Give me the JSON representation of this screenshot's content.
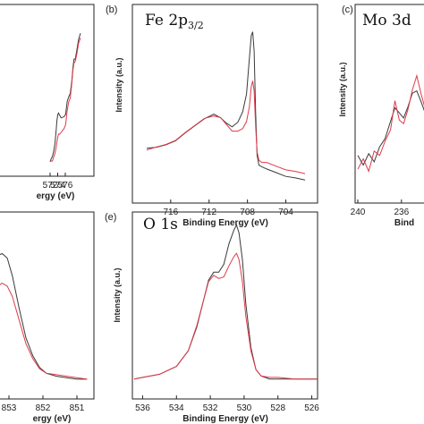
{
  "chart_data": [
    {
      "id": "cr",
      "panel_label": "",
      "title": "",
      "type": "line",
      "xlabel": "ergy (eV)",
      "ylabel": "",
      "xlim": [
        572,
        580
      ],
      "xticks": [
        "576",
        "574",
        "572"
      ],
      "series": [
        {
          "color": "#3a3a3a",
          "x": [
            580,
            579.5,
            579,
            578.6,
            578.3,
            578,
            577.7,
            577.3,
            576.9,
            576.5,
            576.1,
            575.7,
            575.3,
            574.9,
            574.5,
            574.2,
            574,
            573.8,
            573.6,
            573.3,
            573,
            572.6,
            572.3,
            572
          ],
          "y": [
            0.97,
            0.93,
            0.85,
            0.79,
            0.78,
            0.72,
            0.62,
            0.52,
            0.5,
            0.47,
            0.38,
            0.35,
            0.35,
            0.35,
            0.36,
            0.38,
            0.37,
            0.33,
            0.25,
            0.16,
            0.11,
            0.05,
            0.04,
            0.02
          ]
        },
        {
          "color": "#e03a4a",
          "x": [
            580,
            579.5,
            579,
            578.6,
            578.3,
            578,
            577.7,
            577.3,
            576.9,
            576.5,
            576.1,
            575.7,
            575.3,
            574.9,
            574.5,
            574.2,
            574,
            573.8,
            573.6,
            573.3,
            573,
            572.6,
            572.3,
            572
          ],
          "y": [
            0.95,
            0.9,
            0.82,
            0.77,
            0.75,
            0.7,
            0.6,
            0.5,
            0.46,
            0.4,
            0.3,
            0.26,
            0.25,
            0.24,
            0.23,
            0.22,
            0.2,
            0.17,
            0.12,
            0.08,
            0.06,
            0.03,
            0.02,
            0.02
          ]
        }
      ]
    },
    {
      "id": "fe",
      "panel_label": "(b)",
      "title": "Fe 2p3/2",
      "title_main": "Fe 2p",
      "title_sub": "3/2",
      "type": "line",
      "xlabel": "Binding Energy (eV)",
      "ylabel": "Intensity (a.u.)",
      "xlim": [
        702,
        718.5
      ],
      "xticks": [
        "716",
        "712",
        "708",
        "704"
      ],
      "series": [
        {
          "color": "#3a3a3a",
          "x": [
            718.5,
            717.5,
            716.5,
            715.5,
            714.5,
            713.5,
            712.5,
            711.5,
            710.8,
            710.2,
            709.6,
            709,
            708.5,
            708.1,
            707.8,
            707.6,
            707.45,
            707.3,
            707.15,
            707,
            706.8,
            706.5,
            706,
            705,
            704,
            703,
            702
          ],
          "y": [
            0.22,
            0.23,
            0.25,
            0.28,
            0.32,
            0.37,
            0.42,
            0.44,
            0.42,
            0.39,
            0.37,
            0.39,
            0.46,
            0.58,
            0.8,
            0.95,
            0.98,
            0.86,
            0.45,
            0.18,
            0.12,
            0.1,
            0.09,
            0.07,
            0.05,
            0.03,
            0.02
          ]
        },
        {
          "color": "#e03a4a",
          "x": [
            718.5,
            717.5,
            716.5,
            715.5,
            714.5,
            713.5,
            712.5,
            711.5,
            710.8,
            710.2,
            709.6,
            709,
            708.5,
            708.1,
            707.8,
            707.6,
            707.45,
            707.3,
            707.15,
            707,
            706.8,
            706.5,
            706,
            705,
            704,
            703,
            702
          ],
          "y": [
            0.22,
            0.23,
            0.25,
            0.28,
            0.32,
            0.37,
            0.42,
            0.44,
            0.42,
            0.38,
            0.34,
            0.33,
            0.35,
            0.4,
            0.5,
            0.62,
            0.66,
            0.6,
            0.36,
            0.2,
            0.15,
            0.14,
            0.13,
            0.11,
            0.09,
            0.07,
            0.06
          ]
        }
      ]
    },
    {
      "id": "mo",
      "panel_label": "(c)",
      "title": "Mo 3d",
      "type": "line",
      "xlabel": "Bind",
      "ylabel": "Intensity (a.u.)",
      "xlim": [
        230,
        240
      ],
      "xticks": [
        "240",
        "236"
      ],
      "series": [
        {
          "color": "#3a3a3a",
          "x": [
            240,
            239.5,
            239,
            238.5,
            238,
            237.5,
            237,
            236.6,
            236.2,
            235.8,
            235.4,
            235,
            234.6,
            234.2,
            233.8
          ],
          "y": [
            0.18,
            0.12,
            0.2,
            0.15,
            0.24,
            0.3,
            0.42,
            0.5,
            0.47,
            0.44,
            0.52,
            0.6,
            0.62,
            0.55,
            0.46
          ]
        },
        {
          "color": "#e03a4a",
          "x": [
            240,
            239.5,
            239,
            238.5,
            238,
            237.5,
            237,
            236.6,
            236.2,
            235.8,
            235.4,
            235,
            234.6,
            234.2,
            233.8
          ],
          "y": [
            0.1,
            0.16,
            0.08,
            0.22,
            0.18,
            0.28,
            0.36,
            0.56,
            0.42,
            0.4,
            0.5,
            0.62,
            0.72,
            0.6,
            0.5
          ]
        }
      ]
    },
    {
      "id": "ni",
      "panel_label": "",
      "title": "",
      "type": "line",
      "xlabel": "ergy (eV)",
      "ylabel": "",
      "xlim": [
        850.5,
        854.5
      ],
      "xticks": [
        "853",
        "852",
        "851"
      ],
      "series": [
        {
          "color": "#3a3a3a",
          "x": [
            854.5,
            854.2,
            853.9,
            853.6,
            853.4,
            853.2,
            853.05,
            852.9,
            852.7,
            852.5,
            852.3,
            852.1,
            851.9,
            851.6,
            851.3,
            851,
            850.7
          ],
          "y": [
            0.5,
            0.62,
            0.72,
            0.8,
            0.85,
            0.87,
            0.84,
            0.72,
            0.5,
            0.3,
            0.18,
            0.1,
            0.06,
            0.04,
            0.03,
            0.02,
            0.02
          ]
        },
        {
          "color": "#e03a4a",
          "x": [
            854.5,
            854.2,
            853.9,
            853.6,
            853.4,
            853.2,
            853.05,
            852.9,
            852.7,
            852.5,
            852.3,
            852.1,
            851.9,
            851.6,
            851.3,
            851,
            850.7
          ],
          "y": [
            0.35,
            0.44,
            0.52,
            0.6,
            0.64,
            0.67,
            0.65,
            0.58,
            0.42,
            0.26,
            0.16,
            0.09,
            0.06,
            0.05,
            0.04,
            0.03,
            0.02
          ]
        }
      ]
    },
    {
      "id": "o",
      "panel_label": "(e)",
      "title": "O 1s",
      "type": "line",
      "xlabel": "Binding Energy (eV)",
      "ylabel": "Intensity (a.u.)",
      "xlim": [
        525.5,
        536.5
      ],
      "xticks": [
        "536",
        "534",
        "532",
        "530",
        "528",
        "526"
      ],
      "series": [
        {
          "color": "#3a3a3a",
          "x": [
            536.5,
            536,
            535,
            534,
            533.3,
            532.8,
            532.4,
            532.1,
            531.8,
            531.5,
            531.2,
            530.9,
            530.6,
            530.45,
            530.3,
            530.1,
            529.9,
            529.6,
            529.3,
            529,
            528.5,
            528,
            527,
            526,
            525.5
          ],
          "y": [
            0.02,
            0.03,
            0.05,
            0.1,
            0.2,
            0.35,
            0.52,
            0.65,
            0.7,
            0.7,
            0.75,
            0.88,
            0.97,
            1.0,
            0.95,
            0.78,
            0.5,
            0.22,
            0.08,
            0.04,
            0.02,
            0.02,
            0.02,
            0.02,
            0.02
          ]
        },
        {
          "color": "#e03a4a",
          "x": [
            536.5,
            536,
            535,
            534,
            533.3,
            532.8,
            532.4,
            532.1,
            531.8,
            531.5,
            531.2,
            530.9,
            530.6,
            530.45,
            530.3,
            530.1,
            529.9,
            529.6,
            529.3,
            529,
            528.5,
            528,
            527,
            526,
            525.5
          ],
          "y": [
            0.02,
            0.03,
            0.05,
            0.1,
            0.2,
            0.36,
            0.52,
            0.64,
            0.68,
            0.66,
            0.67,
            0.74,
            0.8,
            0.82,
            0.78,
            0.64,
            0.42,
            0.2,
            0.08,
            0.04,
            0.03,
            0.03,
            0.02,
            0.02,
            0.02
          ]
        }
      ]
    }
  ]
}
